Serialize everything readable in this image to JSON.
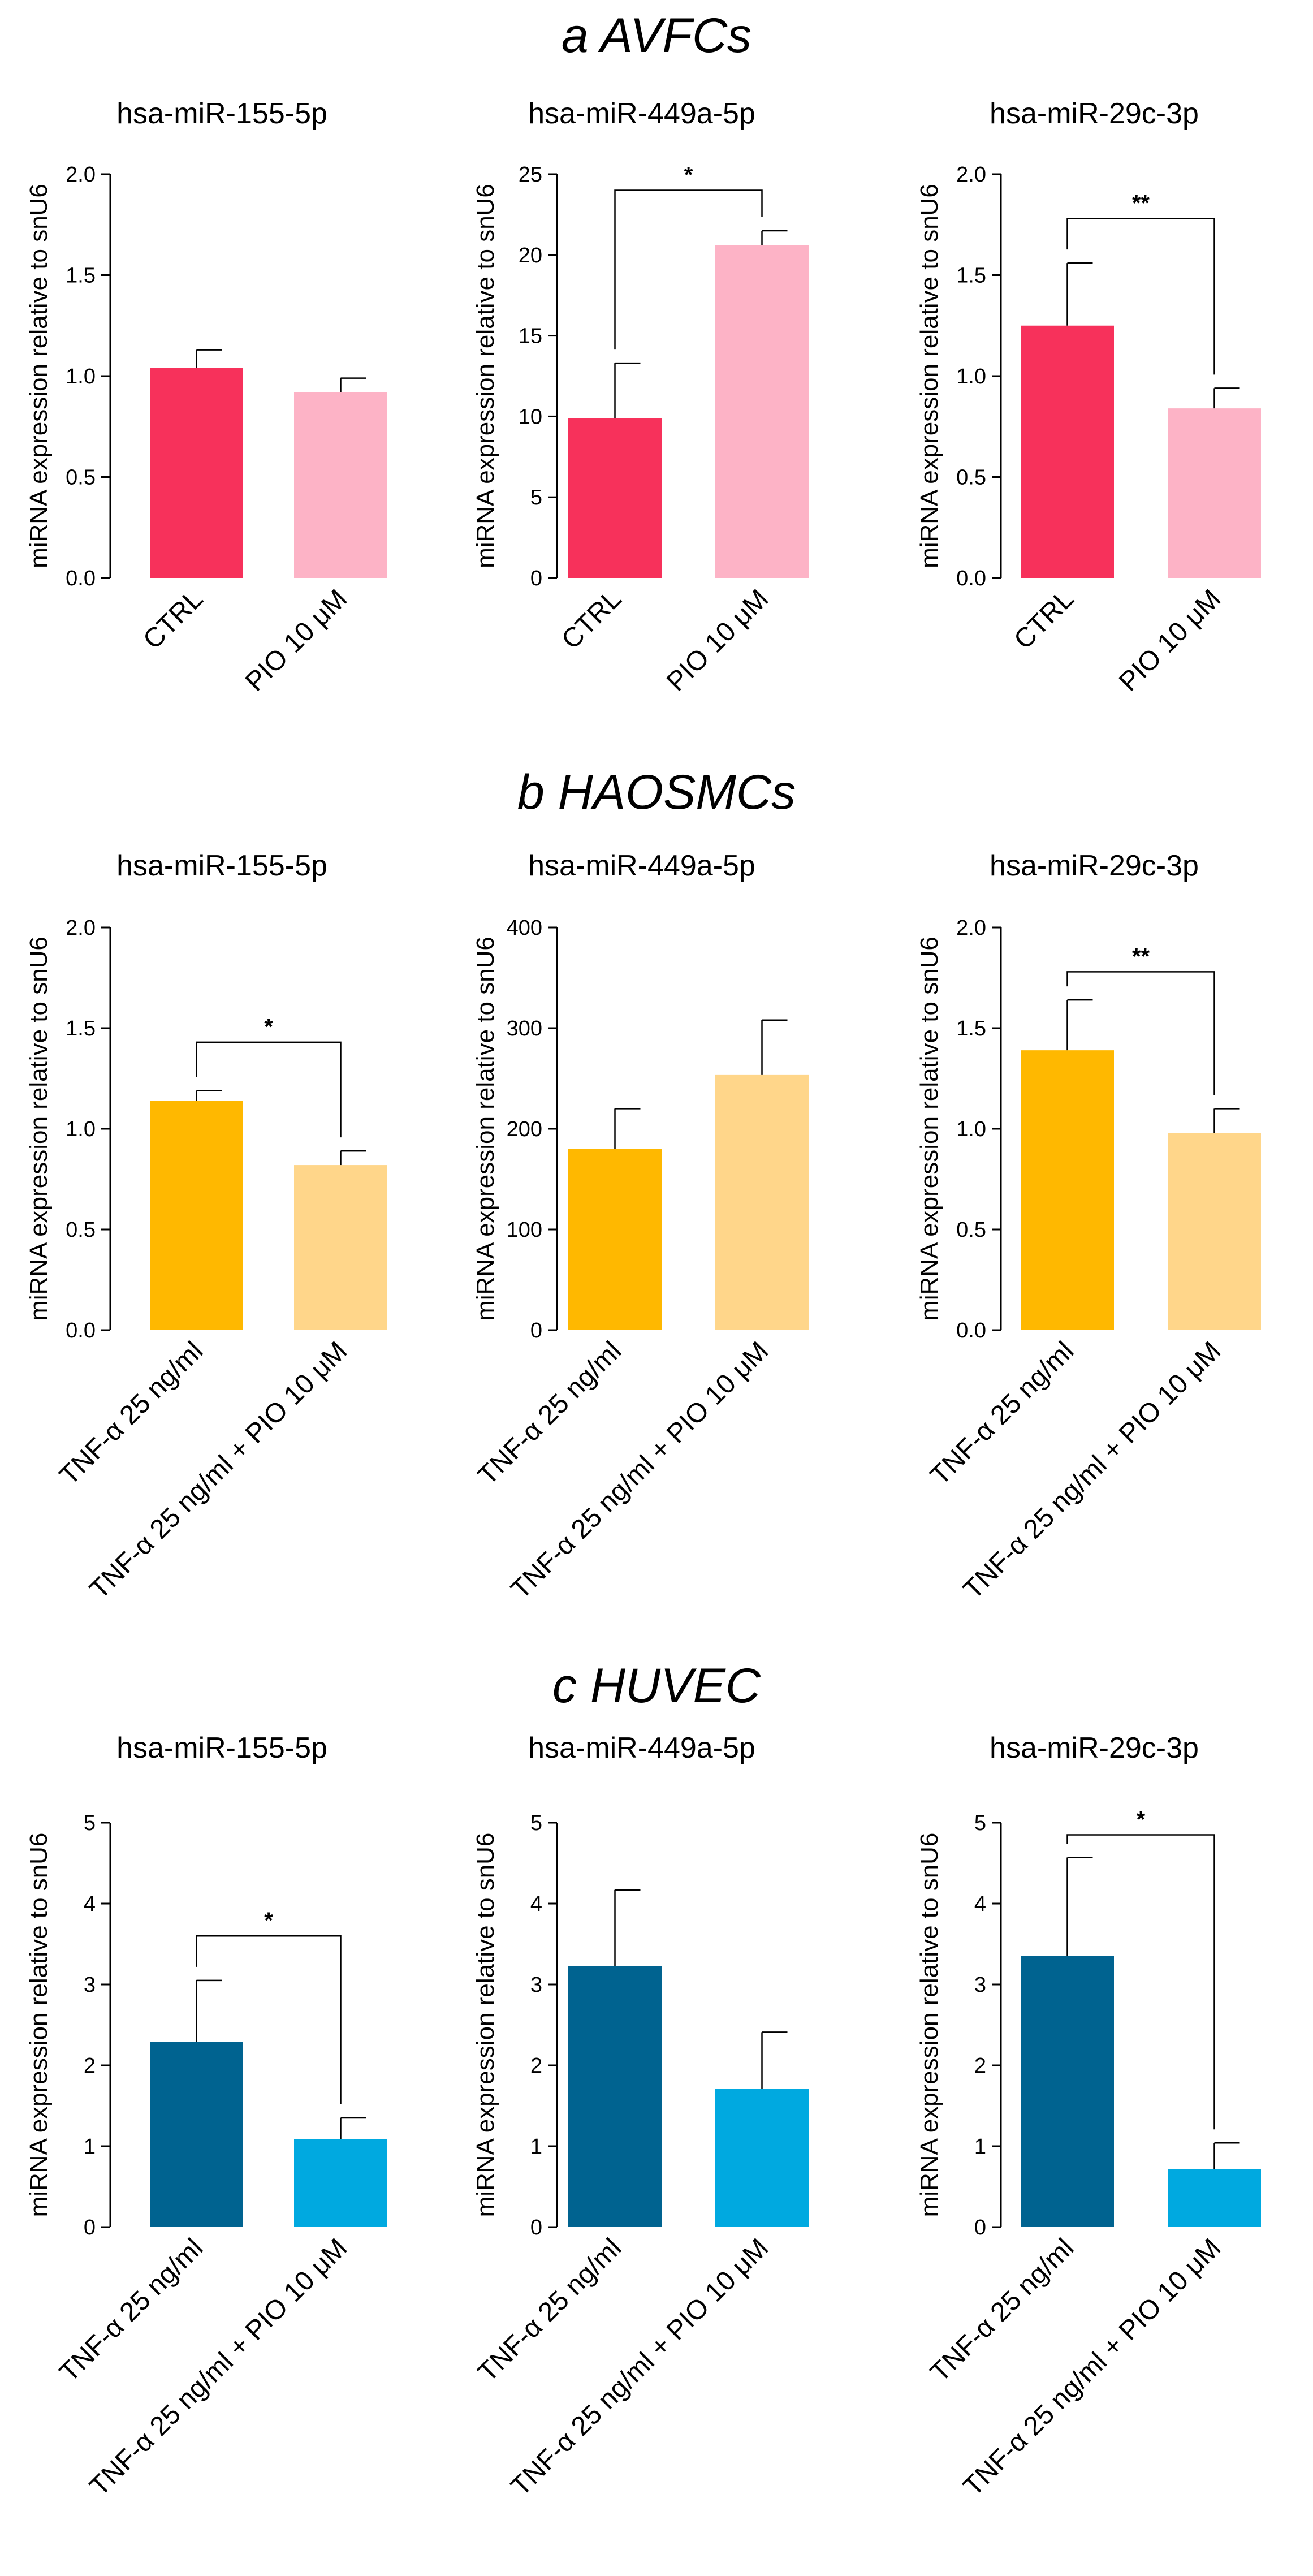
{
  "figure": {
    "sections": [
      {
        "title": "a AVFCs"
      },
      {
        "title": "b HAOSMCs"
      },
      {
        "title": "c HUVEC"
      }
    ]
  },
  "chart_data": [
    {
      "type": "bar",
      "section": 0,
      "title": "hsa-miR-155-5p",
      "ylabel": "miRNA expression relative to snU6",
      "categories": [
        "CTRL",
        "PIO 10 μM"
      ],
      "values": [
        1.04,
        0.92
      ],
      "errors": [
        0.09,
        0.07
      ],
      "ylim": [
        0,
        2.0
      ],
      "yticks": [
        "0.0",
        "0.5",
        "1.0",
        "1.5",
        "2.0"
      ],
      "colors": [
        "#f7315b",
        "#fdb3c6"
      ],
      "significance": null
    },
    {
      "type": "bar",
      "section": 0,
      "title": "hsa-miR-449a-5p",
      "ylabel": "miRNA expression relative to snU6",
      "categories": [
        "CTRL",
        "PIO 10 μM"
      ],
      "values": [
        9.9,
        20.6
      ],
      "errors": [
        3.4,
        0.9
      ],
      "ylim": [
        0,
        25
      ],
      "yticks": [
        "0",
        "5",
        "10",
        "15",
        "20",
        "25"
      ],
      "colors": [
        "#f7315b",
        "#fdb3c6"
      ],
      "significance": {
        "label": "*",
        "y": 24.0
      }
    },
    {
      "type": "bar",
      "section": 0,
      "title": "hsa-miR-29c-3p",
      "ylabel": "miRNA expression relative to snU6",
      "categories": [
        "CTRL",
        "PIO 10 μM"
      ],
      "values": [
        1.25,
        0.84
      ],
      "errors": [
        0.31,
        0.1
      ],
      "ylim": [
        0,
        2.0
      ],
      "yticks": [
        "0.0",
        "0.5",
        "1.0",
        "1.5",
        "2.0"
      ],
      "colors": [
        "#f7315b",
        "#fdb3c6"
      ],
      "significance": {
        "label": "**",
        "y": 1.78
      }
    },
    {
      "type": "bar",
      "section": 1,
      "title": "hsa-miR-155-5p",
      "ylabel": "miRNA expression relative to snU6",
      "categories": [
        "TNF-α 25 ng/ml",
        "TNF-α 25 ng/ml + PIO 10 μM"
      ],
      "values": [
        1.14,
        0.82
      ],
      "errors": [
        0.05,
        0.07
      ],
      "ylim": [
        0,
        2.0
      ],
      "yticks": [
        "0.0",
        "0.5",
        "1.0",
        "1.5",
        "2.0"
      ],
      "colors": [
        "#ffb800",
        "#ffd68a"
      ],
      "significance": {
        "label": "*",
        "y": 1.43
      }
    },
    {
      "type": "bar",
      "section": 1,
      "title": "hsa-miR-449a-5p",
      "ylabel": "miRNA expression relative to snU6",
      "categories": [
        "TNF-α 25 ng/ml",
        "TNF-α 25 ng/ml + PIO 10 μM"
      ],
      "values": [
        180,
        254
      ],
      "errors": [
        40,
        54
      ],
      "ylim": [
        0,
        400
      ],
      "yticks": [
        "0",
        "100",
        "200",
        "300",
        "400"
      ],
      "colors": [
        "#ffb800",
        "#ffd68a"
      ],
      "significance": null
    },
    {
      "type": "bar",
      "section": 1,
      "title": "hsa-miR-29c-3p",
      "ylabel": "miRNA expression relative to snU6",
      "categories": [
        "TNF-α 25 ng/ml",
        "TNF-α 25 ng/ml + PIO 10 μM"
      ],
      "values": [
        1.39,
        0.98
      ],
      "errors": [
        0.25,
        0.12
      ],
      "ylim": [
        0,
        2.0
      ],
      "yticks": [
        "0.0",
        "0.5",
        "1.0",
        "1.5",
        "2.0"
      ],
      "colors": [
        "#ffb800",
        "#ffd68a"
      ],
      "significance": {
        "label": "**",
        "y": 1.78
      }
    },
    {
      "type": "bar",
      "section": 2,
      "title": "hsa-miR-155-5p",
      "ylabel": "miRNA expression relative to snU6",
      "categories": [
        "TNF-α 25 ng/ml",
        "TNF-α 25 ng/ml + PIO 10 μM"
      ],
      "values": [
        2.29,
        1.09
      ],
      "errors": [
        0.76,
        0.26
      ],
      "ylim": [
        0,
        5
      ],
      "yticks": [
        "0",
        "1",
        "2",
        "3",
        "4",
        "5"
      ],
      "colors": [
        "#006390",
        "#00a9e0"
      ],
      "significance": {
        "label": "*",
        "y": 3.6
      }
    },
    {
      "type": "bar",
      "section": 2,
      "title": "hsa-miR-449a-5p",
      "ylabel": "miRNA expression relative to snU6",
      "categories": [
        "TNF-α 25 ng/ml",
        "TNF-α 25 ng/ml + PIO 10 μM"
      ],
      "values": [
        3.23,
        1.71
      ],
      "errors": [
        0.94,
        0.7
      ],
      "ylim": [
        0,
        5
      ],
      "yticks": [
        "0",
        "1",
        "2",
        "3",
        "4",
        "5"
      ],
      "colors": [
        "#006390",
        "#00a9e0"
      ],
      "significance": null
    },
    {
      "type": "bar",
      "section": 2,
      "title": "hsa-miR-29c-3p",
      "ylabel": "miRNA expression relative to snU6",
      "categories": [
        "TNF-α 25 ng/ml",
        "TNF-α 25 ng/ml + PIO 10 μM"
      ],
      "values": [
        3.35,
        0.72
      ],
      "errors": [
        1.22,
        0.32
      ],
      "ylim": [
        0,
        5
      ],
      "yticks": [
        "0",
        "1",
        "2",
        "3",
        "4",
        "5"
      ],
      "colors": [
        "#006390",
        "#00a9e0"
      ],
      "significance": {
        "label": "*",
        "y": 4.85
      }
    }
  ]
}
